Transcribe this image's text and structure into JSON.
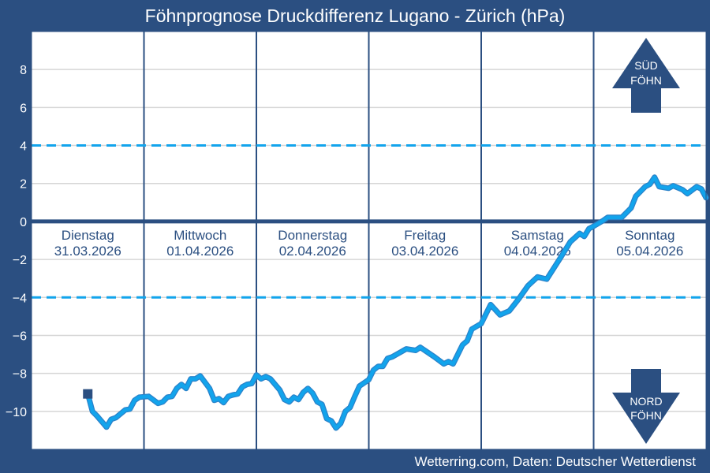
{
  "chart_data": {
    "type": "line",
    "title": "Föhnprognose Druckdifferenz Lugano - Zürich (hPa)",
    "source": "Wetterring.com, Daten: Deutscher Wetterdienst",
    "ylim": [
      -12,
      10
    ],
    "yticks": [
      -10,
      -8,
      -6,
      -4,
      -2,
      0,
      2,
      4,
      6,
      8
    ],
    "grid": true,
    "reference_lines": {
      "zero": 0,
      "dashed": [
        4,
        -4
      ]
    },
    "days": [
      {
        "name": "Dienstag",
        "date": "31.03.2026",
        "iso": "2026-03-31"
      },
      {
        "name": "Mittwoch",
        "date": "01.04.2026",
        "iso": "2026-04-01"
      },
      {
        "name": "Donnerstag",
        "date": "02.04.2026",
        "iso": "2026-04-02"
      },
      {
        "name": "Freitag",
        "date": "03.04.2026",
        "iso": "2026-04-03"
      },
      {
        "name": "Samstag",
        "date": "04.04.2026",
        "iso": "2026-04-04"
      },
      {
        "name": "Sonntag",
        "date": "05.04.2026",
        "iso": "2026-04-05"
      }
    ],
    "arrows": {
      "up": {
        "line1": "SÜD",
        "line2": "FÖHN"
      },
      "down": {
        "line1": "NORD",
        "line2": "FÖHN"
      }
    },
    "colors": {
      "background": "#2b4f81",
      "line": "#12a4ec",
      "dashed": "#12a4ec",
      "zero": "#2b4f81",
      "grid": "#d6d6d6"
    },
    "series": [
      {
        "points": [
          [
            "2026-03-31T12:00",
            -9.08
          ],
          [
            "2026-03-31T13:00",
            -10.0
          ],
          [
            "2026-03-31T14:00",
            -10.25
          ],
          [
            "2026-03-31T16:00",
            -10.83
          ],
          [
            "2026-03-31T17:00",
            -10.42
          ],
          [
            "2026-03-31T18:00",
            -10.33
          ],
          [
            "2026-03-31T20:00",
            -9.92
          ],
          [
            "2026-03-31T21:00",
            -9.88
          ],
          [
            "2026-03-31T22:00",
            -9.42
          ],
          [
            "2026-03-31T23:00",
            -9.25
          ],
          [
            "2026-04-01T01:00",
            -9.21
          ],
          [
            "2026-04-01T03:00",
            -9.58
          ],
          [
            "2026-04-01T04:00",
            -9.5
          ],
          [
            "2026-04-01T05:00",
            -9.25
          ],
          [
            "2026-04-01T06:00",
            -9.21
          ],
          [
            "2026-04-01T07:00",
            -8.79
          ],
          [
            "2026-04-01T08:00",
            -8.58
          ],
          [
            "2026-04-01T09:00",
            -8.79
          ],
          [
            "2026-04-01T10:00",
            -8.29
          ],
          [
            "2026-04-01T11:00",
            -8.29
          ],
          [
            "2026-04-01T12:00",
            -8.13
          ],
          [
            "2026-04-01T14:00",
            -8.79
          ],
          [
            "2026-04-01T15:00",
            -9.42
          ],
          [
            "2026-04-01T16:00",
            -9.33
          ],
          [
            "2026-04-01T17:00",
            -9.54
          ],
          [
            "2026-04-01T18:00",
            -9.21
          ],
          [
            "2026-04-01T19:00",
            -9.13
          ],
          [
            "2026-04-01T20:00",
            -9.08
          ],
          [
            "2026-04-01T21:00",
            -8.71
          ],
          [
            "2026-04-01T22:00",
            -8.58
          ],
          [
            "2026-04-01T23:00",
            -8.54
          ],
          [
            "2026-04-02T00:00",
            -8.08
          ],
          [
            "2026-04-02T01:00",
            -8.29
          ],
          [
            "2026-04-02T02:00",
            -8.17
          ],
          [
            "2026-04-02T03:00",
            -8.29
          ],
          [
            "2026-04-02T05:00",
            -8.88
          ],
          [
            "2026-04-02T06:00",
            -9.38
          ],
          [
            "2026-04-02T07:00",
            -9.5
          ],
          [
            "2026-04-02T08:00",
            -9.25
          ],
          [
            "2026-04-02T09:00",
            -9.38
          ],
          [
            "2026-04-02T10:00",
            -9.0
          ],
          [
            "2026-04-02T11:00",
            -8.79
          ],
          [
            "2026-04-02T12:00",
            -9.04
          ],
          [
            "2026-04-02T13:00",
            -9.5
          ],
          [
            "2026-04-02T14:00",
            -9.63
          ],
          [
            "2026-04-02T15:00",
            -10.38
          ],
          [
            "2026-04-02T16:00",
            -10.5
          ],
          [
            "2026-04-02T17:00",
            -10.88
          ],
          [
            "2026-04-02T18:00",
            -10.63
          ],
          [
            "2026-04-02T19:00",
            -10.0
          ],
          [
            "2026-04-02T20:00",
            -9.79
          ],
          [
            "2026-04-02T21:00",
            -9.21
          ],
          [
            "2026-04-02T22:00",
            -8.67
          ],
          [
            "2026-04-03T00:00",
            -8.33
          ],
          [
            "2026-04-03T01:00",
            -7.83
          ],
          [
            "2026-04-03T02:00",
            -7.63
          ],
          [
            "2026-04-03T03:00",
            -7.63
          ],
          [
            "2026-04-03T04:00",
            -7.21
          ],
          [
            "2026-04-03T05:00",
            -7.13
          ],
          [
            "2026-04-03T08:00",
            -6.71
          ],
          [
            "2026-04-03T10:00",
            -6.79
          ],
          [
            "2026-04-03T11:00",
            -6.63
          ],
          [
            "2026-04-03T14:00",
            -7.13
          ],
          [
            "2026-04-03T16:00",
            -7.5
          ],
          [
            "2026-04-03T17:00",
            -7.38
          ],
          [
            "2026-04-03T18:00",
            -7.5
          ],
          [
            "2026-04-03T20:00",
            -6.5
          ],
          [
            "2026-04-03T21:00",
            -6.29
          ],
          [
            "2026-04-03T22:00",
            -5.67
          ],
          [
            "2026-04-04T00:00",
            -5.38
          ],
          [
            "2026-04-04T02:00",
            -4.38
          ],
          [
            "2026-04-04T04:00",
            -4.92
          ],
          [
            "2026-04-04T06:00",
            -4.71
          ],
          [
            "2026-04-04T08:00",
            -4.08
          ],
          [
            "2026-04-04T10:00",
            -3.38
          ],
          [
            "2026-04-04T12:00",
            -2.92
          ],
          [
            "2026-04-04T14:00",
            -3.04
          ],
          [
            "2026-04-04T17:00",
            -1.88
          ],
          [
            "2026-04-04T19:00",
            -1.08
          ],
          [
            "2026-04-04T21:00",
            -0.63
          ],
          [
            "2026-04-04T22:00",
            -0.79
          ],
          [
            "2026-04-04T23:00",
            -0.38
          ],
          [
            "2026-04-05T00:00",
            -0.25
          ],
          [
            "2026-04-05T02:00",
            0.04
          ],
          [
            "2026-04-05T03:00",
            0.21
          ],
          [
            "2026-04-05T06:00",
            0.21
          ],
          [
            "2026-04-05T08:00",
            0.71
          ],
          [
            "2026-04-05T09:00",
            1.33
          ],
          [
            "2026-04-05T11:00",
            1.83
          ],
          [
            "2026-04-05T12:00",
            1.96
          ],
          [
            "2026-04-05T13:00",
            2.33
          ],
          [
            "2026-04-05T14:00",
            1.83
          ],
          [
            "2026-04-05T16:00",
            1.75
          ],
          [
            "2026-04-05T17:00",
            1.88
          ],
          [
            "2026-04-05T19:00",
            1.67
          ],
          [
            "2026-04-05T20:00",
            1.46
          ],
          [
            "2026-04-05T22:00",
            1.83
          ],
          [
            "2026-04-05T23:00",
            1.71
          ],
          [
            "2026-04-06T00:00",
            1.25
          ]
        ]
      }
    ]
  }
}
